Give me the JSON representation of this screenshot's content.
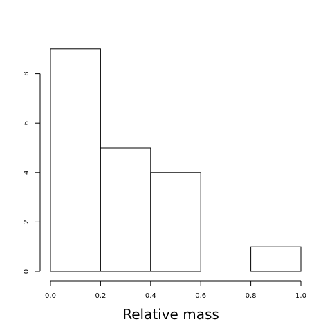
{
  "chart_data": {
    "type": "bar",
    "subtype": "histogram",
    "title": "",
    "xlabel": "Relative mass",
    "ylabel": "",
    "bins": [
      {
        "x0": 0.0,
        "x1": 0.2,
        "count": 9
      },
      {
        "x0": 0.2,
        "x1": 0.4,
        "count": 5
      },
      {
        "x0": 0.4,
        "x1": 0.6,
        "count": 4
      },
      {
        "x0": 0.6,
        "x1": 0.8,
        "count": 0
      },
      {
        "x0": 0.8,
        "x1": 1.0,
        "count": 1
      }
    ],
    "xlim": [
      0.0,
      1.0
    ],
    "ylim": [
      0,
      9
    ],
    "x_ticks": [
      "0.0",
      "0.2",
      "0.4",
      "0.6",
      "0.8",
      "1.0"
    ],
    "y_ticks": [
      "0",
      "2",
      "4",
      "6",
      "8"
    ],
    "grid": false,
    "legend": "none",
    "bar_fill": "#ffffff",
    "bar_stroke": "#000000"
  }
}
